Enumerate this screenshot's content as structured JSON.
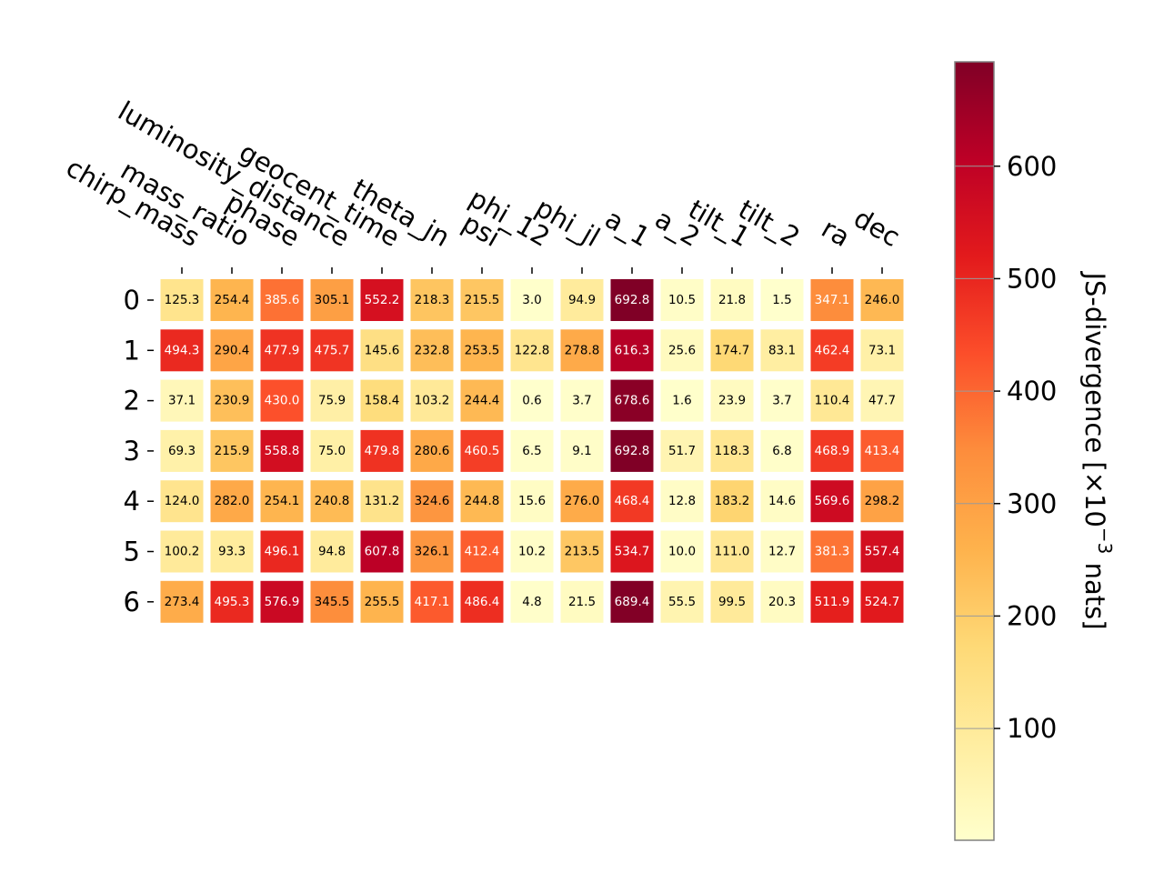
{
  "chart_data": {
    "type": "heatmap",
    "x_labels": [
      "chirp_mass",
      "mass_ratio",
      "phase",
      "luminosity_distance",
      "geocent_time",
      "theta_jn",
      "psi",
      "phi_12",
      "phi_jl",
      "a_1",
      "a_2",
      "tilt_1",
      "tilt_2",
      "ra",
      "dec"
    ],
    "y_labels": [
      "0",
      "1",
      "2",
      "3",
      "4",
      "5",
      "6"
    ],
    "values": [
      [
        125.3,
        254.4,
        385.6,
        305.1,
        552.2,
        218.3,
        215.5,
        3.0,
        94.9,
        692.8,
        10.5,
        21.8,
        1.5,
        347.1,
        246.0
      ],
      [
        494.3,
        290.4,
        477.9,
        475.7,
        145.6,
        232.8,
        253.5,
        122.8,
        278.8,
        616.3,
        25.6,
        174.7,
        83.1,
        462.4,
        73.1
      ],
      [
        37.1,
        230.9,
        430.0,
        75.9,
        158.4,
        103.2,
        244.4,
        0.6,
        3.7,
        678.6,
        1.6,
        23.9,
        3.7,
        110.4,
        47.7
      ],
      [
        69.3,
        215.9,
        558.8,
        75.0,
        479.8,
        280.6,
        460.5,
        6.5,
        9.1,
        692.8,
        51.7,
        118.3,
        6.8,
        468.9,
        413.4
      ],
      [
        124.0,
        282.0,
        254.1,
        240.8,
        131.2,
        324.6,
        244.8,
        15.6,
        276.0,
        468.4,
        12.8,
        183.2,
        14.6,
        569.6,
        298.2
      ],
      [
        100.2,
        93.3,
        496.1,
        94.8,
        607.8,
        326.1,
        412.4,
        10.2,
        213.5,
        534.7,
        10.0,
        111.0,
        12.7,
        381.3,
        557.4
      ],
      [
        273.4,
        495.3,
        576.9,
        345.5,
        255.5,
        417.1,
        486.4,
        4.8,
        21.5,
        689.4,
        55.5,
        99.5,
        20.3,
        511.9,
        524.7
      ]
    ],
    "colorbar": {
      "label_main": "JS-divergence [×10",
      "label_exp": "−3",
      "label_unit": " nats]",
      "range": [
        0.6,
        692.8
      ],
      "ticks": [
        "100",
        "200",
        "300",
        "400",
        "500",
        "600"
      ],
      "tick_values": [
        100,
        200,
        300,
        400,
        500,
        600
      ],
      "colormap": "YlOrRd",
      "stops": [
        "#ffffcc",
        "#ffeda0",
        "#fed976",
        "#feb24c",
        "#fd8d3c",
        "#fc4e2a",
        "#e31a1c",
        "#bd0026",
        "#800026"
      ]
    },
    "cell_text_colors": {
      "light_bg": "#000000",
      "dark_bg": "#ffffff"
    },
    "grid": false
  }
}
